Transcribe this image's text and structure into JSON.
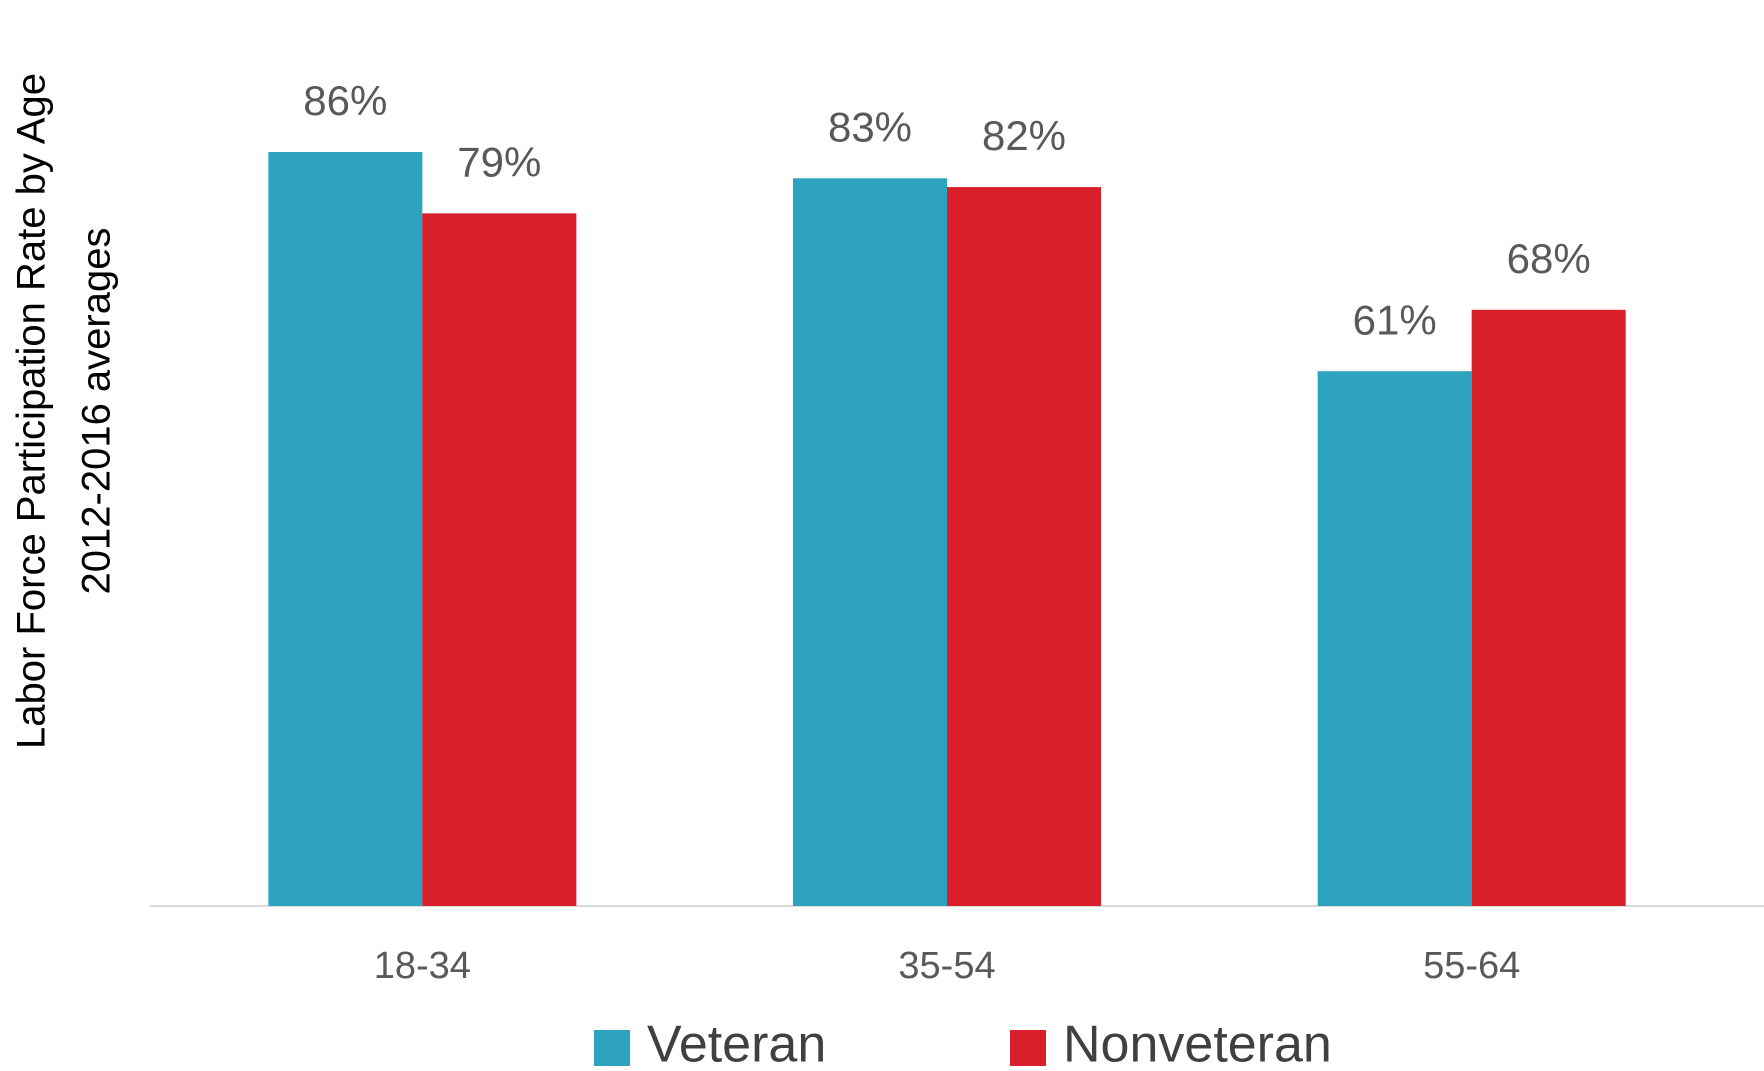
{
  "chart_data": {
    "type": "bar",
    "ylabel": [
      "Labor Force Participation Rate by Age",
      "2012-2016 averages"
    ],
    "categories": [
      "18-34",
      "35-54",
      "55-64"
    ],
    "series": [
      {
        "name": "Veteran",
        "color": "#2ea3bf",
        "values": [
          86,
          83,
          61
        ],
        "value_labels": [
          "86%",
          "83%",
          "61%"
        ]
      },
      {
        "name": "Nonveteran",
        "color": "#d81f2a",
        "values": [
          79,
          82,
          68
        ],
        "value_labels": [
          "79%",
          "82%",
          "68%"
        ]
      }
    ],
    "legend": "bottom"
  }
}
